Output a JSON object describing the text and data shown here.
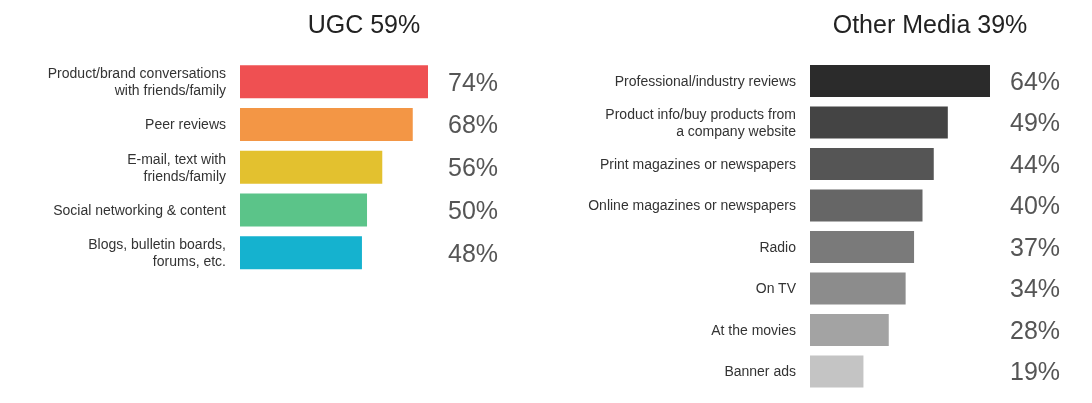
{
  "chart_data": [
    {
      "type": "bar",
      "orientation": "horizontal",
      "title": "UGC 59%",
      "categories": [
        "Product/brand conversations with friends/family",
        "Peer reviews",
        "E-mail, text with friends/family",
        "Social networking & content",
        "Blogs, bulletin boards, forums, etc."
      ],
      "values": [
        74,
        68,
        56,
        50,
        48
      ],
      "colors": [
        "#ef5052",
        "#f39645",
        "#e3c12f",
        "#5bc489",
        "#15b2cf"
      ],
      "value_labels": [
        "74%",
        "68%",
        "56%",
        "50%",
        "48%"
      ]
    },
    {
      "type": "bar",
      "orientation": "horizontal",
      "title": "Other Media 39%",
      "categories": [
        "Professional/industry reviews",
        "Product info/buy products from a company website",
        "Print magazines or newspapers",
        "Online magazines or newspapers",
        "Radio",
        "On TV",
        "At the movies",
        "Banner ads"
      ],
      "values": [
        64,
        49,
        44,
        40,
        37,
        34,
        28,
        19
      ],
      "colors": [
        "#2b2b2b",
        "#444444",
        "#555555",
        "#666666",
        "#7a7a7a",
        "#8c8c8c",
        "#a3a3a3",
        "#c4c4c4"
      ],
      "value_labels": [
        "64%",
        "49%",
        "44%",
        "40%",
        "37%",
        "34%",
        "28%",
        "19%"
      ]
    }
  ]
}
